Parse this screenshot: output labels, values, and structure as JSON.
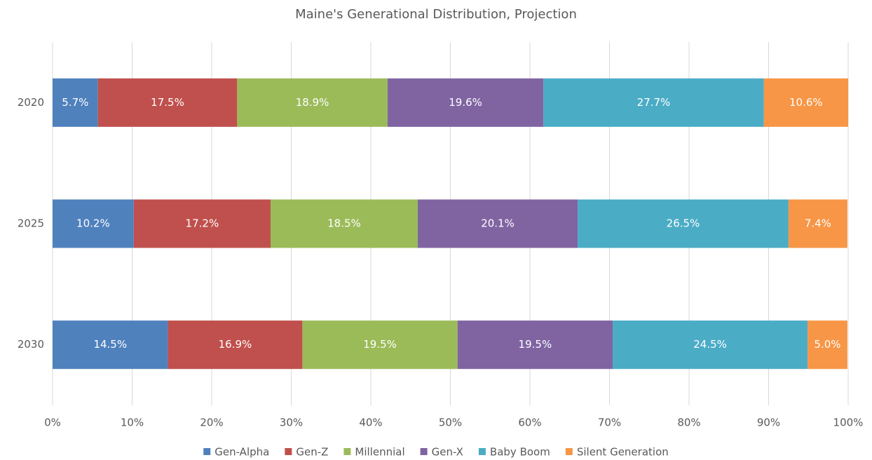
{
  "chart_data": {
    "type": "stacked_bar_horizontal",
    "title": "Maine's Generational Distribution, Projection",
    "categories": [
      "2020",
      "2025",
      "2030"
    ],
    "series": [
      {
        "name": "Gen-Alpha",
        "color": "#4f81bd",
        "values": [
          5.7,
          10.2,
          14.5
        ],
        "value_labels": [
          "5.7%",
          "10.2%",
          "14.5%"
        ]
      },
      {
        "name": "Gen-Z",
        "color": "#c0504d",
        "values": [
          17.5,
          17.2,
          16.9
        ],
        "value_labels": [
          "17.5%",
          "17.2%",
          "16.9%"
        ]
      },
      {
        "name": "Millennial",
        "color": "#9bbb59",
        "values": [
          18.9,
          18.5,
          19.5
        ],
        "value_labels": [
          "18.9%",
          "18.5%",
          "19.5%"
        ]
      },
      {
        "name": "Gen-X",
        "color": "#8064a2",
        "values": [
          19.6,
          20.1,
          19.5
        ],
        "value_labels": [
          "19.6%",
          "20.1%",
          "19.5%"
        ]
      },
      {
        "name": "Baby Boom",
        "color": "#4bacc6",
        "values": [
          27.7,
          26.5,
          24.5
        ],
        "value_labels": [
          "27.7%",
          "26.5%",
          "24.5%"
        ]
      },
      {
        "name": "Silent Generation",
        "color": "#f79646",
        "values": [
          10.6,
          7.4,
          5.0
        ],
        "value_labels": [
          "10.6%",
          "7.4%",
          "5.0%"
        ]
      }
    ],
    "xlim": [
      0,
      100
    ],
    "xticks": [
      {
        "value": 0,
        "label": "0%"
      },
      {
        "value": 10,
        "label": "10%"
      },
      {
        "value": 20,
        "label": "20%"
      },
      {
        "value": 30,
        "label": "30%"
      },
      {
        "value": 40,
        "label": "40%"
      },
      {
        "value": 50,
        "label": "50%"
      },
      {
        "value": 60,
        "label": "60%"
      },
      {
        "value": 70,
        "label": "70%"
      },
      {
        "value": 80,
        "label": "80%"
      },
      {
        "value": 90,
        "label": "90%"
      },
      {
        "value": 100,
        "label": "100%"
      }
    ],
    "grid": true,
    "legend": "bottom"
  }
}
